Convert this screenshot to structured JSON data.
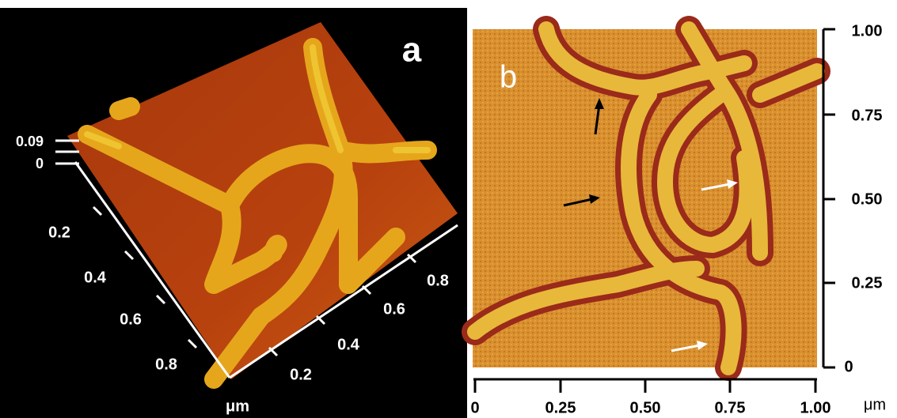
{
  "panel_a": {
    "label": "a",
    "z_ticks": [
      "0.09",
      "0"
    ],
    "left_ticks": [
      "0.2",
      "0.4",
      "0.6",
      "0.8"
    ],
    "right_ticks": [
      "0.2",
      "0.4",
      "0.6",
      "0.8"
    ],
    "unit": "μm"
  },
  "panel_b": {
    "label": "b",
    "y_ticks": [
      "1.00",
      "0.75",
      "0.50",
      "0.25",
      "0"
    ],
    "x_ticks": [
      "0",
      "0.25",
      "0.50",
      "0.75",
      "1.00"
    ],
    "unit": "μm"
  }
}
